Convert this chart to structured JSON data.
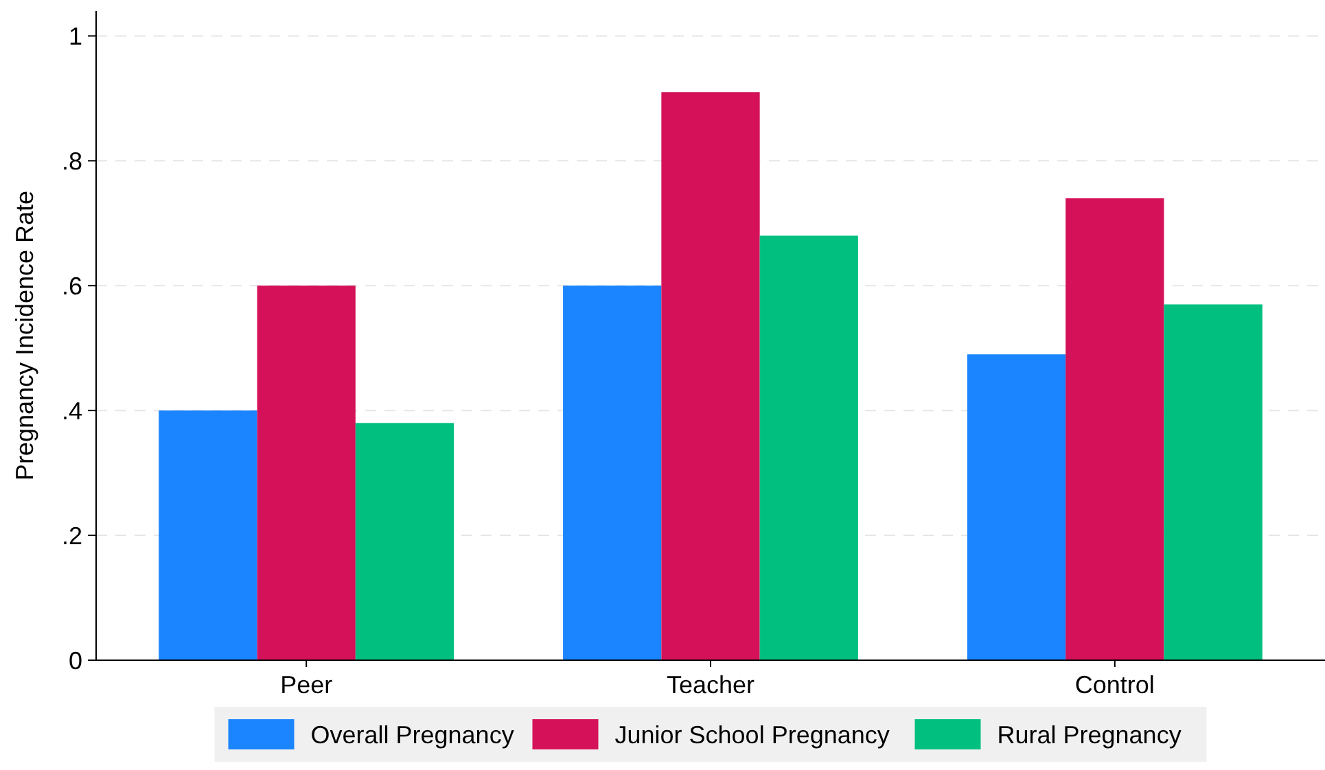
{
  "chart_data": {
    "type": "bar",
    "ylabel": "Pregnancy Incidence Rate",
    "categories": [
      "Peer",
      "Teacher",
      "Control"
    ],
    "series": [
      {
        "name": "Overall Pregnancy",
        "color": "#1a85ff",
        "values": [
          0.4,
          0.6,
          0.49
        ]
      },
      {
        "name": "Junior School Pregnancy",
        "color": "#d41159",
        "values": [
          0.6,
          0.91,
          0.74
        ]
      },
      {
        "name": "Rural Pregnancy",
        "color": "#00bf7f",
        "values": [
          0.38,
          0.68,
          0.57
        ]
      }
    ],
    "ylim": [
      0,
      1.04
    ],
    "yticks": [
      {
        "value": 0,
        "label": "0"
      },
      {
        "value": 0.2,
        "label": ".2"
      },
      {
        "value": 0.4,
        "label": ".4"
      },
      {
        "value": 0.6,
        "label": ".6"
      },
      {
        "value": 0.8,
        "label": ".8"
      },
      {
        "value": 1,
        "label": "1"
      }
    ],
    "grid": "y",
    "legend": "bottom"
  }
}
